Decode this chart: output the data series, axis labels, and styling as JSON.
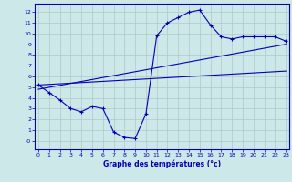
{
  "xlabel": "Graphe des températures (°c)",
  "bg_color": "#cce8e8",
  "grid_color": "#aacccc",
  "line_color": "#0000bb",
  "x_ticks": [
    0,
    1,
    2,
    3,
    4,
    5,
    6,
    7,
    8,
    9,
    10,
    11,
    12,
    13,
    14,
    15,
    16,
    17,
    18,
    19,
    20,
    21,
    22,
    23
  ],
  "y_ticks": [
    0,
    1,
    2,
    3,
    4,
    5,
    6,
    7,
    8,
    9,
    10,
    11,
    12
  ],
  "ylim": [
    -0.8,
    12.8
  ],
  "xlim": [
    -0.3,
    23.3
  ],
  "curve_x": [
    0,
    1,
    2,
    3,
    4,
    5,
    6,
    7,
    8,
    9,
    10,
    11,
    12,
    13,
    14,
    15,
    16,
    17,
    18,
    19,
    20,
    21,
    22,
    23
  ],
  "curve_y": [
    5.2,
    4.5,
    3.8,
    3.0,
    2.7,
    3.2,
    3.0,
    0.8,
    0.3,
    0.2,
    2.5,
    9.8,
    11.0,
    11.5,
    12.0,
    12.2,
    10.8,
    9.7,
    9.5,
    9.7,
    9.7,
    9.7,
    9.7,
    9.3
  ],
  "line1_x": [
    0,
    23
  ],
  "line1_y": [
    5.2,
    6.5
  ],
  "line2_x": [
    0,
    23
  ],
  "line2_y": [
    4.8,
    9.0
  ],
  "ylabel_ticks": [
    "-0",
    "1",
    "2",
    "3",
    "4",
    "5",
    "6",
    "7",
    "8",
    "9",
    "10",
    "11",
    "12"
  ]
}
